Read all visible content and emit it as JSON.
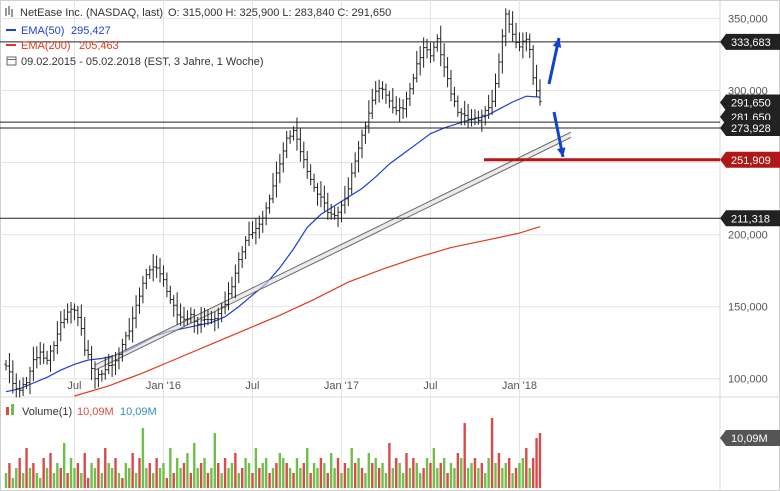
{
  "header": {
    "title": "NetEase Inc. (NASDAQ, last)",
    "ohlc": "O: 315,000   H: 325,900   L: 283,840   C: 291,650",
    "period": "09.02.2015 - 05.02.2018   (EST, 3 Jahre, 1 Woche)"
  },
  "legend": {
    "ema50_label": "EMA(50)",
    "ema50_value": "295,427",
    "ema200_label": "EMA(200)",
    "ema200_value": "205,463",
    "volume_label": "Volume(1)",
    "volume_red": "10,09M",
    "volume_blue": "10,09M"
  },
  "colors": {
    "ema50": "#1f3fd6",
    "ema200": "#e03a1e",
    "resistance": "#b01818",
    "arrows": "#1144cc",
    "volume_up": "#6fbf4a",
    "volume_down": "#d94b4b",
    "tag_dark": "#222222",
    "tag_red": "#b01818",
    "tag_gray": "#555555"
  },
  "chart_data": {
    "type": "candlestick",
    "title": "NetEase Inc. (NASDAQ, last)",
    "ylim": [
      88,
      360
    ],
    "y_ticks": [
      "100,000",
      "150,000",
      "200,000",
      "250,000",
      "300,000",
      "350,000"
    ],
    "y_tick_values": [
      100,
      150,
      200,
      250,
      300,
      350
    ],
    "x_ticks": [
      "Jul",
      "Jan '16",
      "Jul",
      "Jan '17",
      "Jul",
      "Jan '18"
    ],
    "x_tick_weeks": [
      20,
      46,
      72,
      98,
      124,
      150
    ],
    "weeks": 157,
    "close_path": [
      [
        0,
        110
      ],
      [
        1,
        105
      ],
      [
        2,
        96
      ],
      [
        4,
        92
      ],
      [
        6,
        98
      ],
      [
        8,
        112
      ],
      [
        10,
        118
      ],
      [
        12,
        113
      ],
      [
        14,
        124
      ],
      [
        16,
        138
      ],
      [
        18,
        146
      ],
      [
        20,
        148
      ],
      [
        22,
        136
      ],
      [
        23,
        120
      ],
      [
        24,
        116
      ],
      [
        26,
        100
      ],
      [
        28,
        104
      ],
      [
        30,
        108
      ],
      [
        32,
        112
      ],
      [
        34,
        124
      ],
      [
        36,
        134
      ],
      [
        38,
        150
      ],
      [
        40,
        166
      ],
      [
        42,
        176
      ],
      [
        44,
        178
      ],
      [
        46,
        168
      ],
      [
        48,
        155
      ],
      [
        50,
        145
      ],
      [
        52,
        140
      ],
      [
        54,
        144
      ],
      [
        56,
        138
      ],
      [
        58,
        142
      ],
      [
        60,
        140
      ],
      [
        62,
        145
      ],
      [
        64,
        152
      ],
      [
        66,
        165
      ],
      [
        68,
        182
      ],
      [
        70,
        196
      ],
      [
        72,
        202
      ],
      [
        74,
        206
      ],
      [
        76,
        218
      ],
      [
        78,
        234
      ],
      [
        80,
        250
      ],
      [
        82,
        266
      ],
      [
        84,
        272
      ],
      [
        86,
        258
      ],
      [
        88,
        245
      ],
      [
        90,
        232
      ],
      [
        92,
        226
      ],
      [
        94,
        216
      ],
      [
        96,
        212
      ],
      [
        98,
        220
      ],
      [
        100,
        232
      ],
      [
        102,
        252
      ],
      [
        104,
        268
      ],
      [
        106,
        284
      ],
      [
        108,
        300
      ],
      [
        110,
        302
      ],
      [
        112,
        292
      ],
      [
        114,
        286
      ],
      [
        116,
        288
      ],
      [
        118,
        300
      ],
      [
        120,
        318
      ],
      [
        122,
        330
      ],
      [
        124,
        325
      ],
      [
        126,
        335
      ],
      [
        128,
        316
      ],
      [
        130,
        298
      ],
      [
        132,
        286
      ],
      [
        134,
        282
      ],
      [
        136,
        280
      ],
      [
        138,
        280
      ],
      [
        140,
        285
      ],
      [
        142,
        292
      ],
      [
        144,
        320
      ],
      [
        146,
        354
      ],
      [
        148,
        338
      ],
      [
        150,
        330
      ],
      [
        152,
        336
      ],
      [
        153,
        328
      ],
      [
        154,
        310
      ],
      [
        155,
        300
      ],
      [
        156,
        291.65
      ]
    ],
    "ema50_path": [
      [
        0,
        91
      ],
      [
        4,
        93
      ],
      [
        8,
        97
      ],
      [
        12,
        101
      ],
      [
        16,
        106
      ],
      [
        20,
        110
      ],
      [
        24,
        113
      ],
      [
        28,
        114
      ],
      [
        32,
        116
      ],
      [
        36,
        120
      ],
      [
        40,
        125
      ],
      [
        44,
        130
      ],
      [
        48,
        133
      ],
      [
        52,
        135
      ],
      [
        56,
        137
      ],
      [
        60,
        139
      ],
      [
        64,
        143
      ],
      [
        68,
        150
      ],
      [
        72,
        158
      ],
      [
        76,
        166
      ],
      [
        80,
        177
      ],
      [
        84,
        190
      ],
      [
        88,
        205
      ],
      [
        92,
        214
      ],
      [
        96,
        220
      ],
      [
        100,
        226
      ],
      [
        104,
        232
      ],
      [
        108,
        240
      ],
      [
        112,
        249
      ],
      [
        116,
        256
      ],
      [
        120,
        263
      ],
      [
        124,
        270
      ],
      [
        128,
        274
      ],
      [
        132,
        277
      ],
      [
        136,
        280
      ],
      [
        140,
        282
      ],
      [
        144,
        287
      ],
      [
        148,
        292
      ],
      [
        152,
        296
      ],
      [
        156,
        295.43
      ]
    ],
    "ema200_path": [
      [
        20,
        88
      ],
      [
        30,
        95
      ],
      [
        40,
        104
      ],
      [
        50,
        114
      ],
      [
        60,
        124
      ],
      [
        70,
        134
      ],
      [
        80,
        144
      ],
      [
        90,
        155
      ],
      [
        100,
        167
      ],
      [
        110,
        176
      ],
      [
        120,
        184
      ],
      [
        130,
        191
      ],
      [
        140,
        196
      ],
      [
        150,
        201
      ],
      [
        156,
        205.46
      ]
    ],
    "trendline": [
      [
        26,
        106
      ],
      [
        156,
        257
      ]
    ],
    "horizontal_levels": [
      {
        "value": 333.683,
        "label": "333,683",
        "tag": "dark"
      },
      {
        "value": 291.65,
        "label": "291,650",
        "tag": "dark"
      },
      {
        "value": 281.65,
        "label": "281,650",
        "tag": "dark"
      },
      {
        "value": 273.928,
        "label": "273,928",
        "tag": "dark"
      },
      {
        "value": 251.909,
        "label": "251,909",
        "tag": "red"
      },
      {
        "value": 211.318,
        "label": "211,318",
        "tag": "dark"
      }
    ],
    "volume": {
      "label": "Volume(1)",
      "last_label": "10,09M",
      "values_m": [
        3,
        5,
        2,
        4,
        6,
        3,
        8,
        4,
        5,
        3,
        2,
        6,
        4,
        7,
        3,
        5,
        4,
        9,
        3,
        6,
        4,
        5,
        3,
        7,
        2,
        5,
        4,
        6,
        3,
        8,
        5,
        4,
        6,
        3,
        2,
        5,
        4,
        7,
        3,
        6,
        12,
        4,
        5,
        3,
        6,
        4,
        5,
        2,
        8,
        3,
        6,
        4,
        5,
        7,
        3,
        9,
        4,
        5,
        6,
        3,
        4,
        11,
        5,
        3,
        6,
        4,
        5,
        7,
        3,
        4,
        6,
        5,
        3,
        8,
        4,
        5,
        6,
        3,
        4,
        5,
        7,
        6,
        5,
        4,
        3,
        6,
        4,
        5,
        8,
        3,
        5,
        4,
        6,
        5,
        3,
        7,
        4,
        6,
        3,
        5,
        4,
        8,
        5,
        6,
        4,
        3,
        7,
        5,
        6,
        4,
        5,
        3,
        9,
        4,
        6,
        5,
        3,
        7,
        4,
        6,
        5,
        3,
        4,
        6,
        5,
        8,
        4,
        5,
        6,
        3,
        5,
        4,
        7,
        6,
        13,
        4,
        5,
        6,
        4,
        5,
        3,
        6,
        14,
        5,
        7,
        4,
        5,
        6,
        3,
        4,
        5,
        6,
        8,
        4,
        6,
        10,
        11
      ],
      "up_flags": [
        1,
        0,
        1,
        1,
        0,
        1,
        0,
        1,
        0,
        1,
        1,
        0,
        1,
        0,
        1,
        1,
        0,
        1,
        0,
        1,
        1,
        0,
        1,
        0,
        0,
        1,
        1,
        0,
        1,
        0,
        1,
        1,
        0,
        1,
        0,
        1,
        1,
        0,
        1,
        0,
        1,
        1,
        0,
        1,
        0,
        1,
        1,
        0,
        1,
        0,
        1,
        1,
        0,
        1,
        0,
        1,
        1,
        0,
        1,
        0,
        1,
        1,
        0,
        1,
        0,
        1,
        1,
        0,
        1,
        0,
        1,
        1,
        0,
        1,
        0,
        1,
        1,
        0,
        1,
        0,
        1,
        1,
        0,
        1,
        0,
        1,
        1,
        0,
        1,
        0,
        1,
        1,
        0,
        1,
        0,
        1,
        1,
        0,
        1,
        0,
        1,
        1,
        0,
        1,
        0,
        1,
        1,
        0,
        1,
        0,
        1,
        1,
        0,
        1,
        0,
        1,
        1,
        0,
        1,
        0,
        1,
        1,
        0,
        1,
        0,
        1,
        1,
        0,
        1,
        0,
        1,
        1,
        0,
        1,
        0,
        1,
        1,
        0,
        1,
        0,
        1,
        1,
        0,
        1,
        0,
        1,
        1,
        0,
        1,
        0,
        1,
        1,
        0,
        1,
        0,
        0,
        0
      ]
    }
  },
  "y_axis_tags": [
    "333,683",
    "291,650",
    "281,650",
    "273,928",
    "251,909",
    "211,318",
    "10,09M"
  ]
}
